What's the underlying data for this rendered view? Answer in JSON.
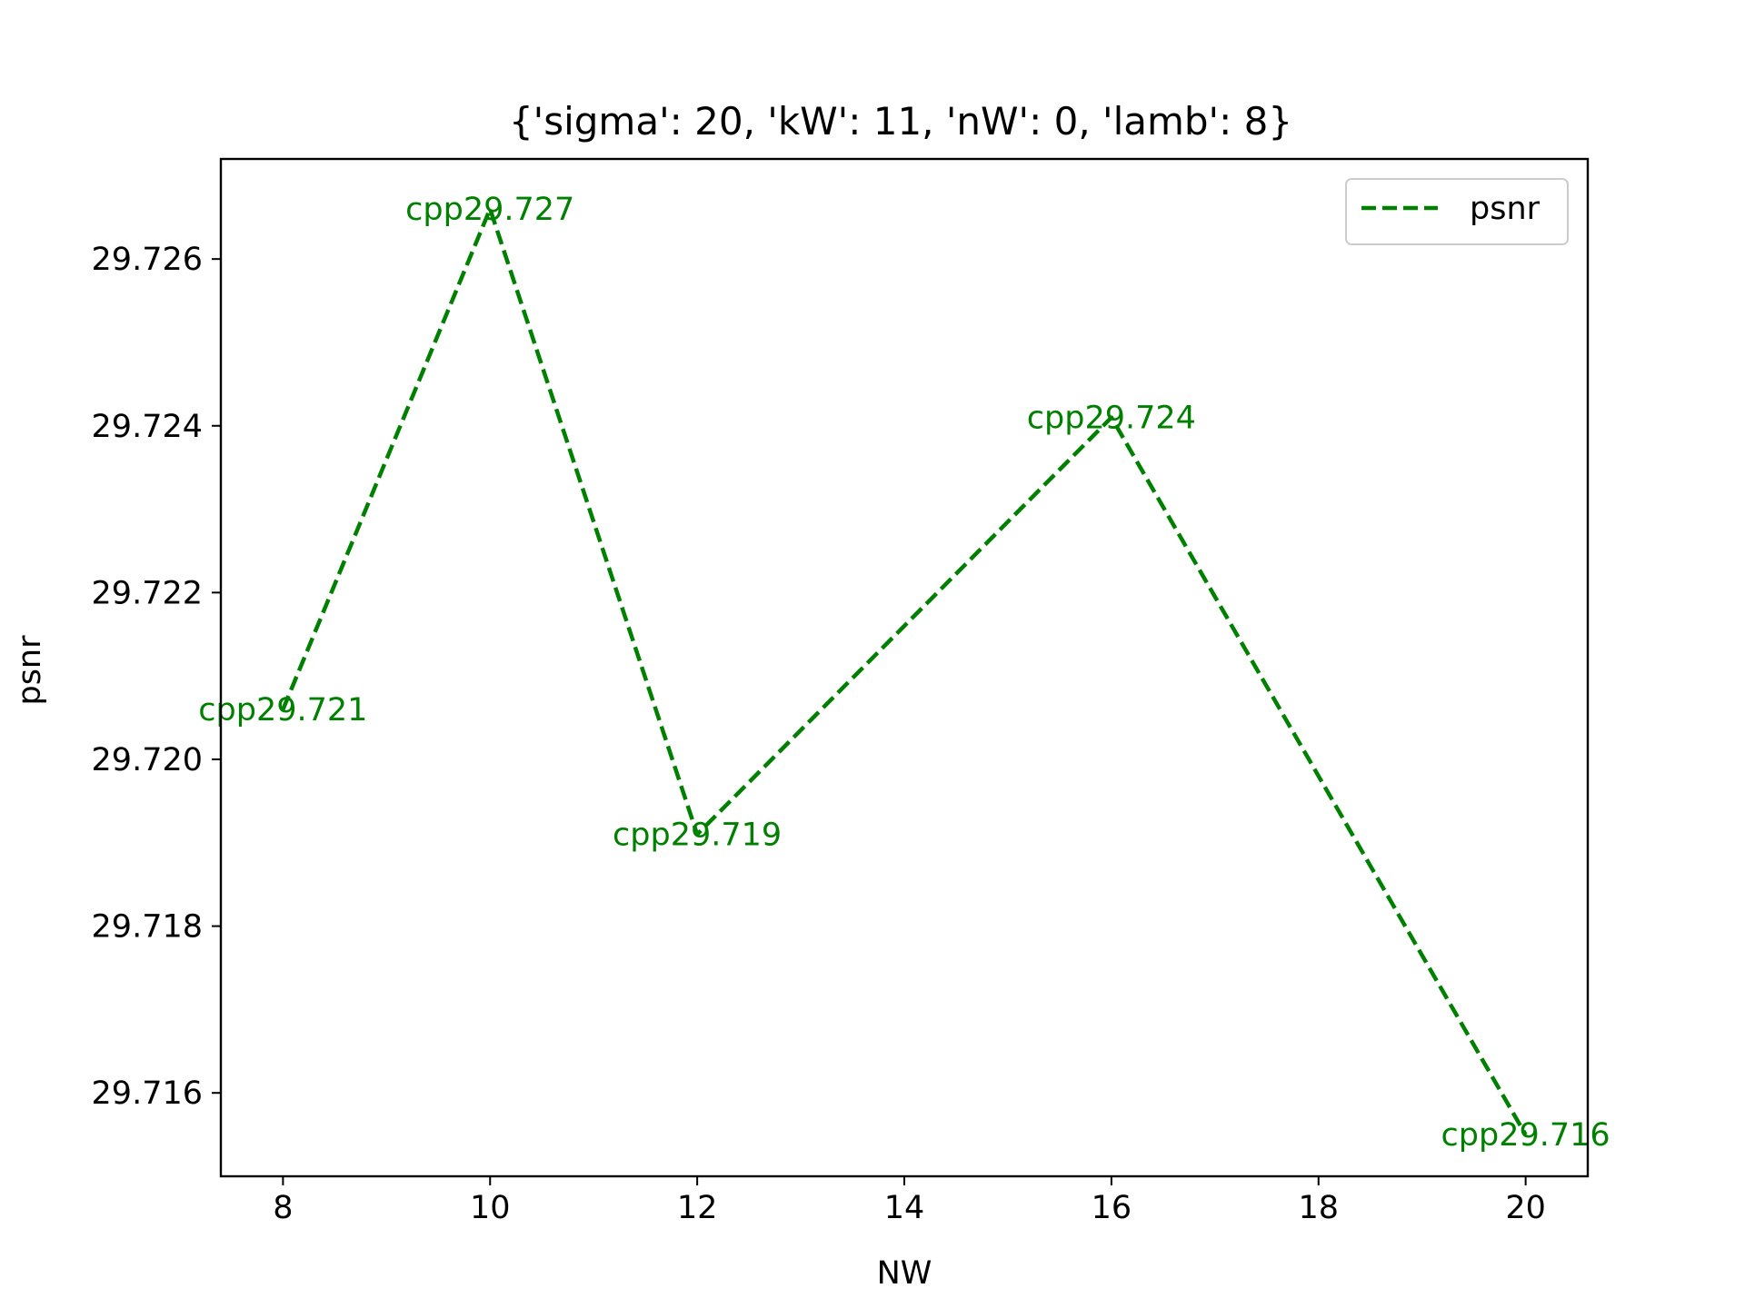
{
  "chart_data": {
    "type": "line",
    "title": "{'sigma': 20, 'kW': 11, 'nW': 0, 'lamb': 8}",
    "xlabel": "NW",
    "ylabel": "psnr",
    "x": [
      8,
      10,
      12,
      16,
      20
    ],
    "xticks": [
      8,
      10,
      12,
      14,
      16,
      18,
      20
    ],
    "xtick_labels": [
      "8",
      "10",
      "12",
      "14",
      "16",
      "18",
      "20"
    ],
    "yticks": [
      29.716,
      29.718,
      29.72,
      29.722,
      29.724,
      29.726
    ],
    "ytick_labels": [
      "29.716",
      "29.718",
      "29.720",
      "29.722",
      "29.724",
      "29.726"
    ],
    "xlim": [
      7.4,
      20.6
    ],
    "ylim": [
      29.715,
      29.7272
    ],
    "grid": false,
    "legend_position": "top-right",
    "series": [
      {
        "name": "psnr",
        "color": "#008000",
        "linestyle": "dashed",
        "values": [
          29.7206,
          29.7266,
          29.7191,
          29.7241,
          29.7155
        ],
        "labels": [
          "cpp29.721",
          "cpp29.727",
          "cpp29.719",
          "cpp29.724",
          "cpp29.716"
        ]
      }
    ]
  }
}
